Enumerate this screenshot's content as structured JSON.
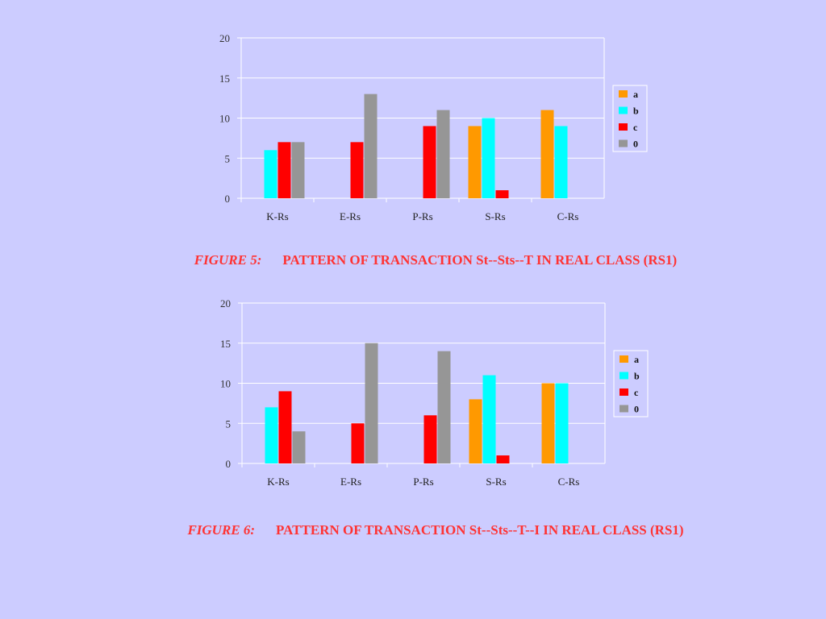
{
  "chart_data": [
    {
      "type": "bar",
      "categories": [
        "K-Rs",
        "E-Rs",
        "P-Rs",
        "S-Rs",
        "C-Rs"
      ],
      "series": [
        {
          "name": "a",
          "color": "#ff9900",
          "values": [
            0,
            0,
            0,
            9,
            11
          ]
        },
        {
          "name": "b",
          "color": "#00ffff",
          "values": [
            6,
            0,
            0,
            10,
            9
          ]
        },
        {
          "name": "c",
          "color": "#ff0000",
          "values": [
            7,
            7,
            9,
            1,
            0
          ]
        },
        {
          "name": "0",
          "color": "#969696",
          "values": [
            7,
            13,
            11,
            0,
            0
          ]
        }
      ],
      "ylim": [
        0,
        20
      ],
      "yticks": [
        0,
        5,
        10,
        15,
        20
      ],
      "grid": true,
      "legend": "right",
      "caption_label": "FIGURE 5:",
      "caption_text": "PATTERN OF TRANSACTION  St--Sts--T  IN REAL CLASS (RS1)"
    },
    {
      "type": "bar",
      "categories": [
        "K-Rs",
        "E-Rs",
        "P-Rs",
        "S-Rs",
        "C-Rs"
      ],
      "series": [
        {
          "name": "a",
          "color": "#ff9900",
          "values": [
            0,
            0,
            0,
            8,
            10
          ]
        },
        {
          "name": "b",
          "color": "#00ffff",
          "values": [
            7,
            0,
            0,
            11,
            10
          ]
        },
        {
          "name": "c",
          "color": "#ff0000",
          "values": [
            9,
            5,
            6,
            1,
            0
          ]
        },
        {
          "name": "0",
          "color": "#969696",
          "values": [
            4,
            15,
            14,
            0,
            0
          ]
        }
      ],
      "ylim": [
        0,
        20
      ],
      "yticks": [
        0,
        5,
        10,
        15,
        20
      ],
      "grid": true,
      "legend": "right",
      "caption_label": "FIGURE 6:",
      "caption_text": "PATTERN OF TRANSACTION  St--Sts--T--I  IN REAL CLASS (RS1)"
    }
  ]
}
